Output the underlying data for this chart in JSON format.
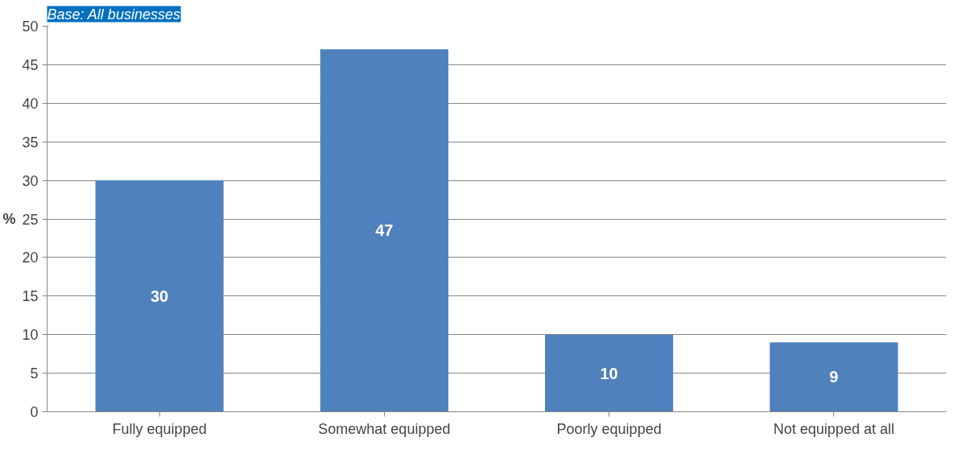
{
  "chart_data": {
    "type": "bar",
    "subtitle": "Base: All businesses",
    "categories": [
      "Fully equipped",
      "Somewhat equipped",
      "Poorly equipped",
      "Not equipped at all"
    ],
    "values": [
      30,
      47,
      10,
      9
    ],
    "color": "#4f81bd",
    "data_labels": true,
    "ylabel": "%",
    "ylim": [
      0,
      50
    ],
    "yticks": [
      0,
      5,
      10,
      15,
      20,
      25,
      30,
      35,
      40,
      45,
      50
    ],
    "grid": "y"
  }
}
